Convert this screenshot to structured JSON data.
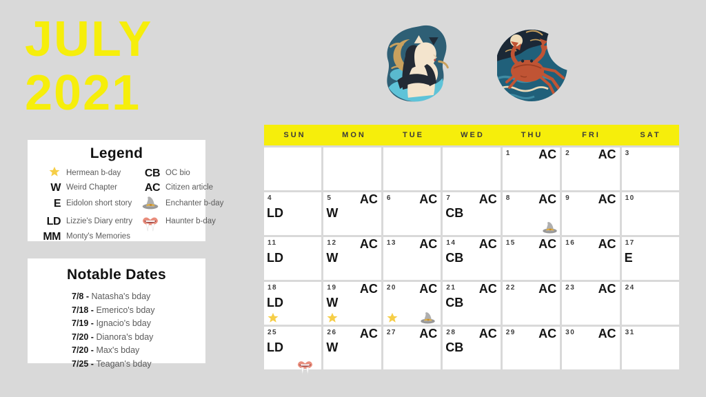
{
  "header": {
    "month": "JULY",
    "year": "2021"
  },
  "illustrations": [
    "gemini-twins",
    "cancer-crab"
  ],
  "legend": {
    "title": "Legend",
    "items_left": [
      {
        "icon": "star",
        "label": "Hermean b-day"
      },
      {
        "symbol": "W",
        "label": "Weird Chapter"
      },
      {
        "symbol": "E",
        "label": "Eidolon short story"
      },
      {
        "symbol": "LD",
        "label": "Lizzie's Diary entry"
      },
      {
        "symbol": "MM",
        "label": "Monty's Memories"
      }
    ],
    "items_right": [
      {
        "symbol": "CB",
        "label": "OC bio"
      },
      {
        "symbol": "AC",
        "label": "Citizen article"
      },
      {
        "icon": "wizard-hat",
        "label": "Enchanter b-day"
      },
      {
        "icon": "vampire-lips",
        "label": "Haunter b-day"
      }
    ]
  },
  "notable_dates": {
    "title": "Notable Dates",
    "items": [
      {
        "date": "7/8",
        "label": "Natasha's bday"
      },
      {
        "date": "7/18",
        "label": "Emerico's bday"
      },
      {
        "date": "7/19",
        "label": "Ignacio's bday"
      },
      {
        "date": "7/20",
        "label": "Dianora's bday"
      },
      {
        "date": "7/20",
        "label": "Max's bday"
      },
      {
        "date": "7/25",
        "label": "Teagan's bday"
      }
    ]
  },
  "calendar": {
    "day_headers": [
      "SUN",
      "MON",
      "TUE",
      "WED",
      "THU",
      "FRI",
      "SAT"
    ],
    "cells": [
      {},
      {},
      {},
      {},
      {
        "day": "1",
        "badge": "AC"
      },
      {
        "day": "2",
        "badge": "AC"
      },
      {
        "day": "3"
      },
      {
        "day": "4",
        "code": "LD"
      },
      {
        "day": "5",
        "badge": "AC",
        "code": "W"
      },
      {
        "day": "6",
        "badge": "AC"
      },
      {
        "day": "7",
        "badge": "AC",
        "code": "CB"
      },
      {
        "day": "8",
        "badge": "AC",
        "icons": [
          "wizard-hat"
        ]
      },
      {
        "day": "9",
        "badge": "AC"
      },
      {
        "day": "10"
      },
      {
        "day": "11",
        "code": "LD"
      },
      {
        "day": "12",
        "badge": "AC",
        "code": "W"
      },
      {
        "day": "13",
        "badge": "AC"
      },
      {
        "day": "14",
        "badge": "AC",
        "code": "CB"
      },
      {
        "day": "15",
        "badge": "AC"
      },
      {
        "day": "16",
        "badge": "AC"
      },
      {
        "day": "17",
        "code": "E"
      },
      {
        "day": "18",
        "code": "LD",
        "icons": [
          "star"
        ]
      },
      {
        "day": "19",
        "badge": "AC",
        "code": "W",
        "icons": [
          "star"
        ]
      },
      {
        "day": "20",
        "badge": "AC",
        "icons": [
          "star",
          "wizard-hat"
        ]
      },
      {
        "day": "21",
        "badge": "AC",
        "code": "CB"
      },
      {
        "day": "22",
        "badge": "AC"
      },
      {
        "day": "23",
        "badge": "AC"
      },
      {
        "day": "24"
      },
      {
        "day": "25",
        "code": "LD",
        "icons": [
          "vampire-lips"
        ]
      },
      {
        "day": "26",
        "badge": "AC",
        "code": "W"
      },
      {
        "day": "27",
        "badge": "AC"
      },
      {
        "day": "28",
        "badge": "AC",
        "code": "CB"
      },
      {
        "day": "29",
        "badge": "AC"
      },
      {
        "day": "30",
        "badge": "AC"
      },
      {
        "day": "31"
      }
    ]
  },
  "colors": {
    "accent_yellow": "#F6EE0B",
    "background_gray": "#D9D9D9",
    "panel_white": "#FFFFFF",
    "ink_black": "#161616",
    "muted_gray": "#5B5B5B",
    "star_gold": "#F6CE47",
    "hat_gray": "#A9A9A9",
    "lips_coral": "#E98D7C"
  }
}
